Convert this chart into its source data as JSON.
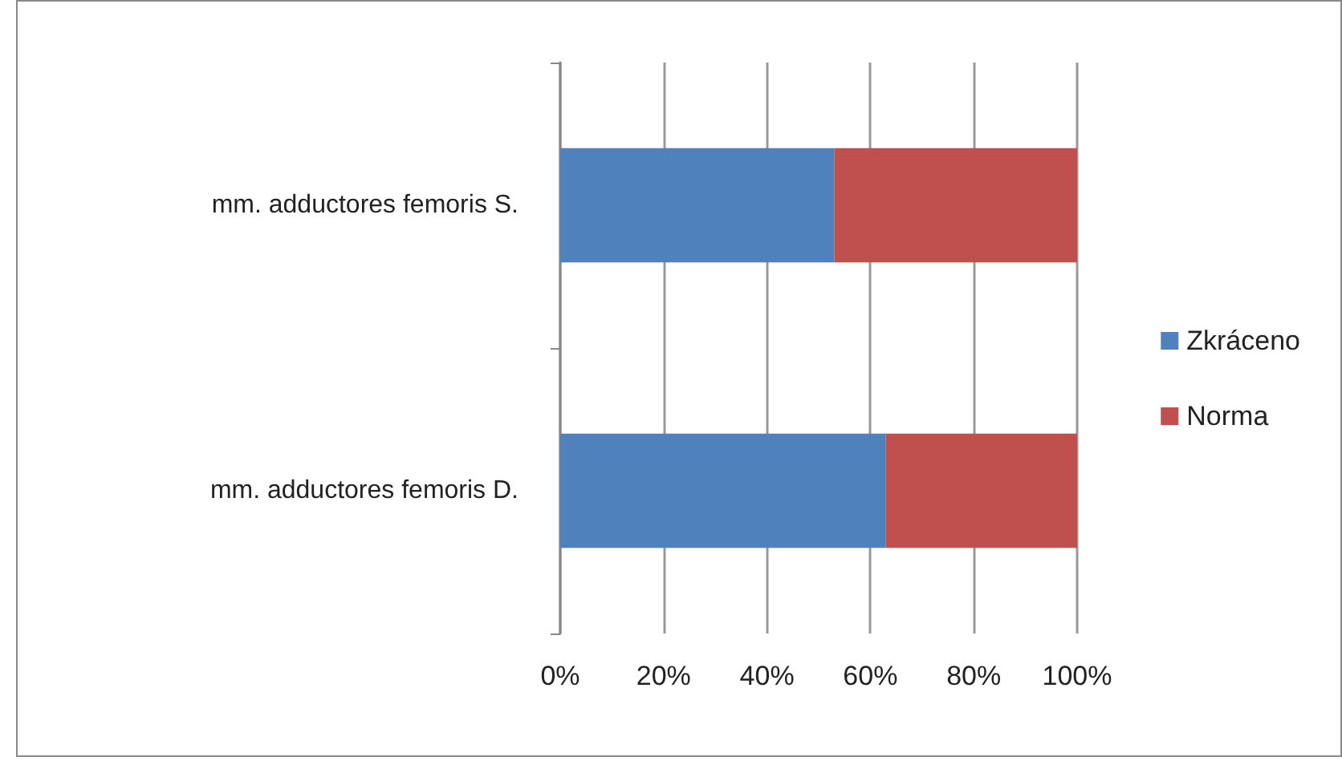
{
  "chart_data": {
    "type": "bar",
    "orientation": "horizontal",
    "stacked": true,
    "categories": [
      "mm. adductores femoris S.",
      "mm. adductores femoris D."
    ],
    "series": [
      {
        "name": "Zkráceno",
        "color": "#4f81bd",
        "values": [
          53,
          63
        ]
      },
      {
        "name": "Norma",
        "color": "#c0504d",
        "values": [
          47,
          37
        ]
      }
    ],
    "xlim": [
      0,
      100
    ],
    "xticks": [
      {
        "value": 0,
        "label": "0%"
      },
      {
        "value": 20,
        "label": "20%"
      },
      {
        "value": 40,
        "label": "40%"
      },
      {
        "value": 60,
        "label": "60%"
      },
      {
        "value": 80,
        "label": "80%"
      },
      {
        "value": 100,
        "label": "100%"
      }
    ],
    "grid": "x",
    "legend": "right"
  }
}
